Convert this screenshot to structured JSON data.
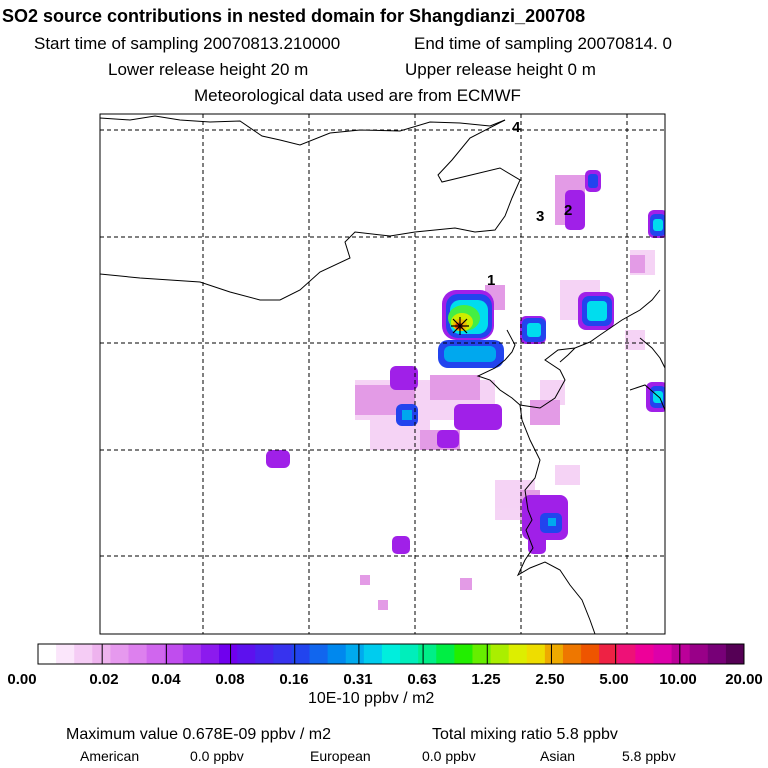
{
  "header": {
    "title": "SO2 source contributions in nested domain for Shangdianzi_200708",
    "start_label": "Start time of sampling 20070813.210000",
    "end_label": "End time of sampling 20070814.    0",
    "lower_label": "Lower release height   20 m",
    "upper_label": "Upper release height    0 m",
    "met_label": "Meteorological data used are from ECMWF"
  },
  "map": {
    "point_labels": [
      "1",
      "2",
      "3",
      "4"
    ],
    "gridline_color": "#000000",
    "coast_color": "#000000"
  },
  "colorbar": {
    "tick_labels": [
      "0.00",
      "0.02",
      "0.04",
      "0.08",
      "0.16",
      "0.31",
      "0.63",
      "1.25",
      "2.50",
      "5.00",
      "10.00",
      "20.00"
    ],
    "colors": [
      "#ffffff",
      "#fbe6fb",
      "#f5ccf5",
      "#eeb3ee",
      "#e699ee",
      "#dd80ee",
      "#d066ee",
      "#c04dee",
      "#a633ee",
      "#8c1aee",
      "#7000ee",
      "#5d11ee",
      "#4a22ee",
      "#3733ee",
      "#2244ee",
      "#1166ee",
      "#0088ee",
      "#00aaee",
      "#00ccee",
      "#00eedd",
      "#00eebb",
      "#00ee88",
      "#00ee44",
      "#22ee00",
      "#66ee00",
      "#aaee00",
      "#ddee00",
      "#eedd00",
      "#eeaa00",
      "#ee7700",
      "#ee5500",
      "#ee2244",
      "#ee1177",
      "#ee0099",
      "#dd00aa",
      "#bb0099",
      "#990088",
      "#770077",
      "#550055"
    ],
    "unit": "10E-10 ppbv / m2"
  },
  "footer": {
    "max_label": "Maximum value  0.678E-09 ppbv / m2",
    "total_label": "Total mixing ratio      5.8 ppbv",
    "american_label": "American",
    "american_value": "0.0 ppbv",
    "european_label": "European",
    "european_value": "0.0 ppbv",
    "asian_label": "Asian",
    "asian_value": "5.8 ppbv"
  },
  "chart_data": {
    "type": "heatmap",
    "title": "SO2 source contributions in nested domain for Shangdianzi_200708",
    "color_scale_levels": [
      0.0,
      0.02,
      0.04,
      0.08,
      0.16,
      0.31,
      0.63,
      1.25,
      2.5,
      5.0,
      10.0,
      20.0
    ],
    "color_scale_unit": "10E-10 ppbv / m2",
    "maximum_value": "0.678E-09 ppbv / m2",
    "total_mixing_ratio_ppbv": 5.8,
    "contributions_ppbv": {
      "American": 0.0,
      "European": 0.0,
      "Asian": 5.8
    }
  }
}
